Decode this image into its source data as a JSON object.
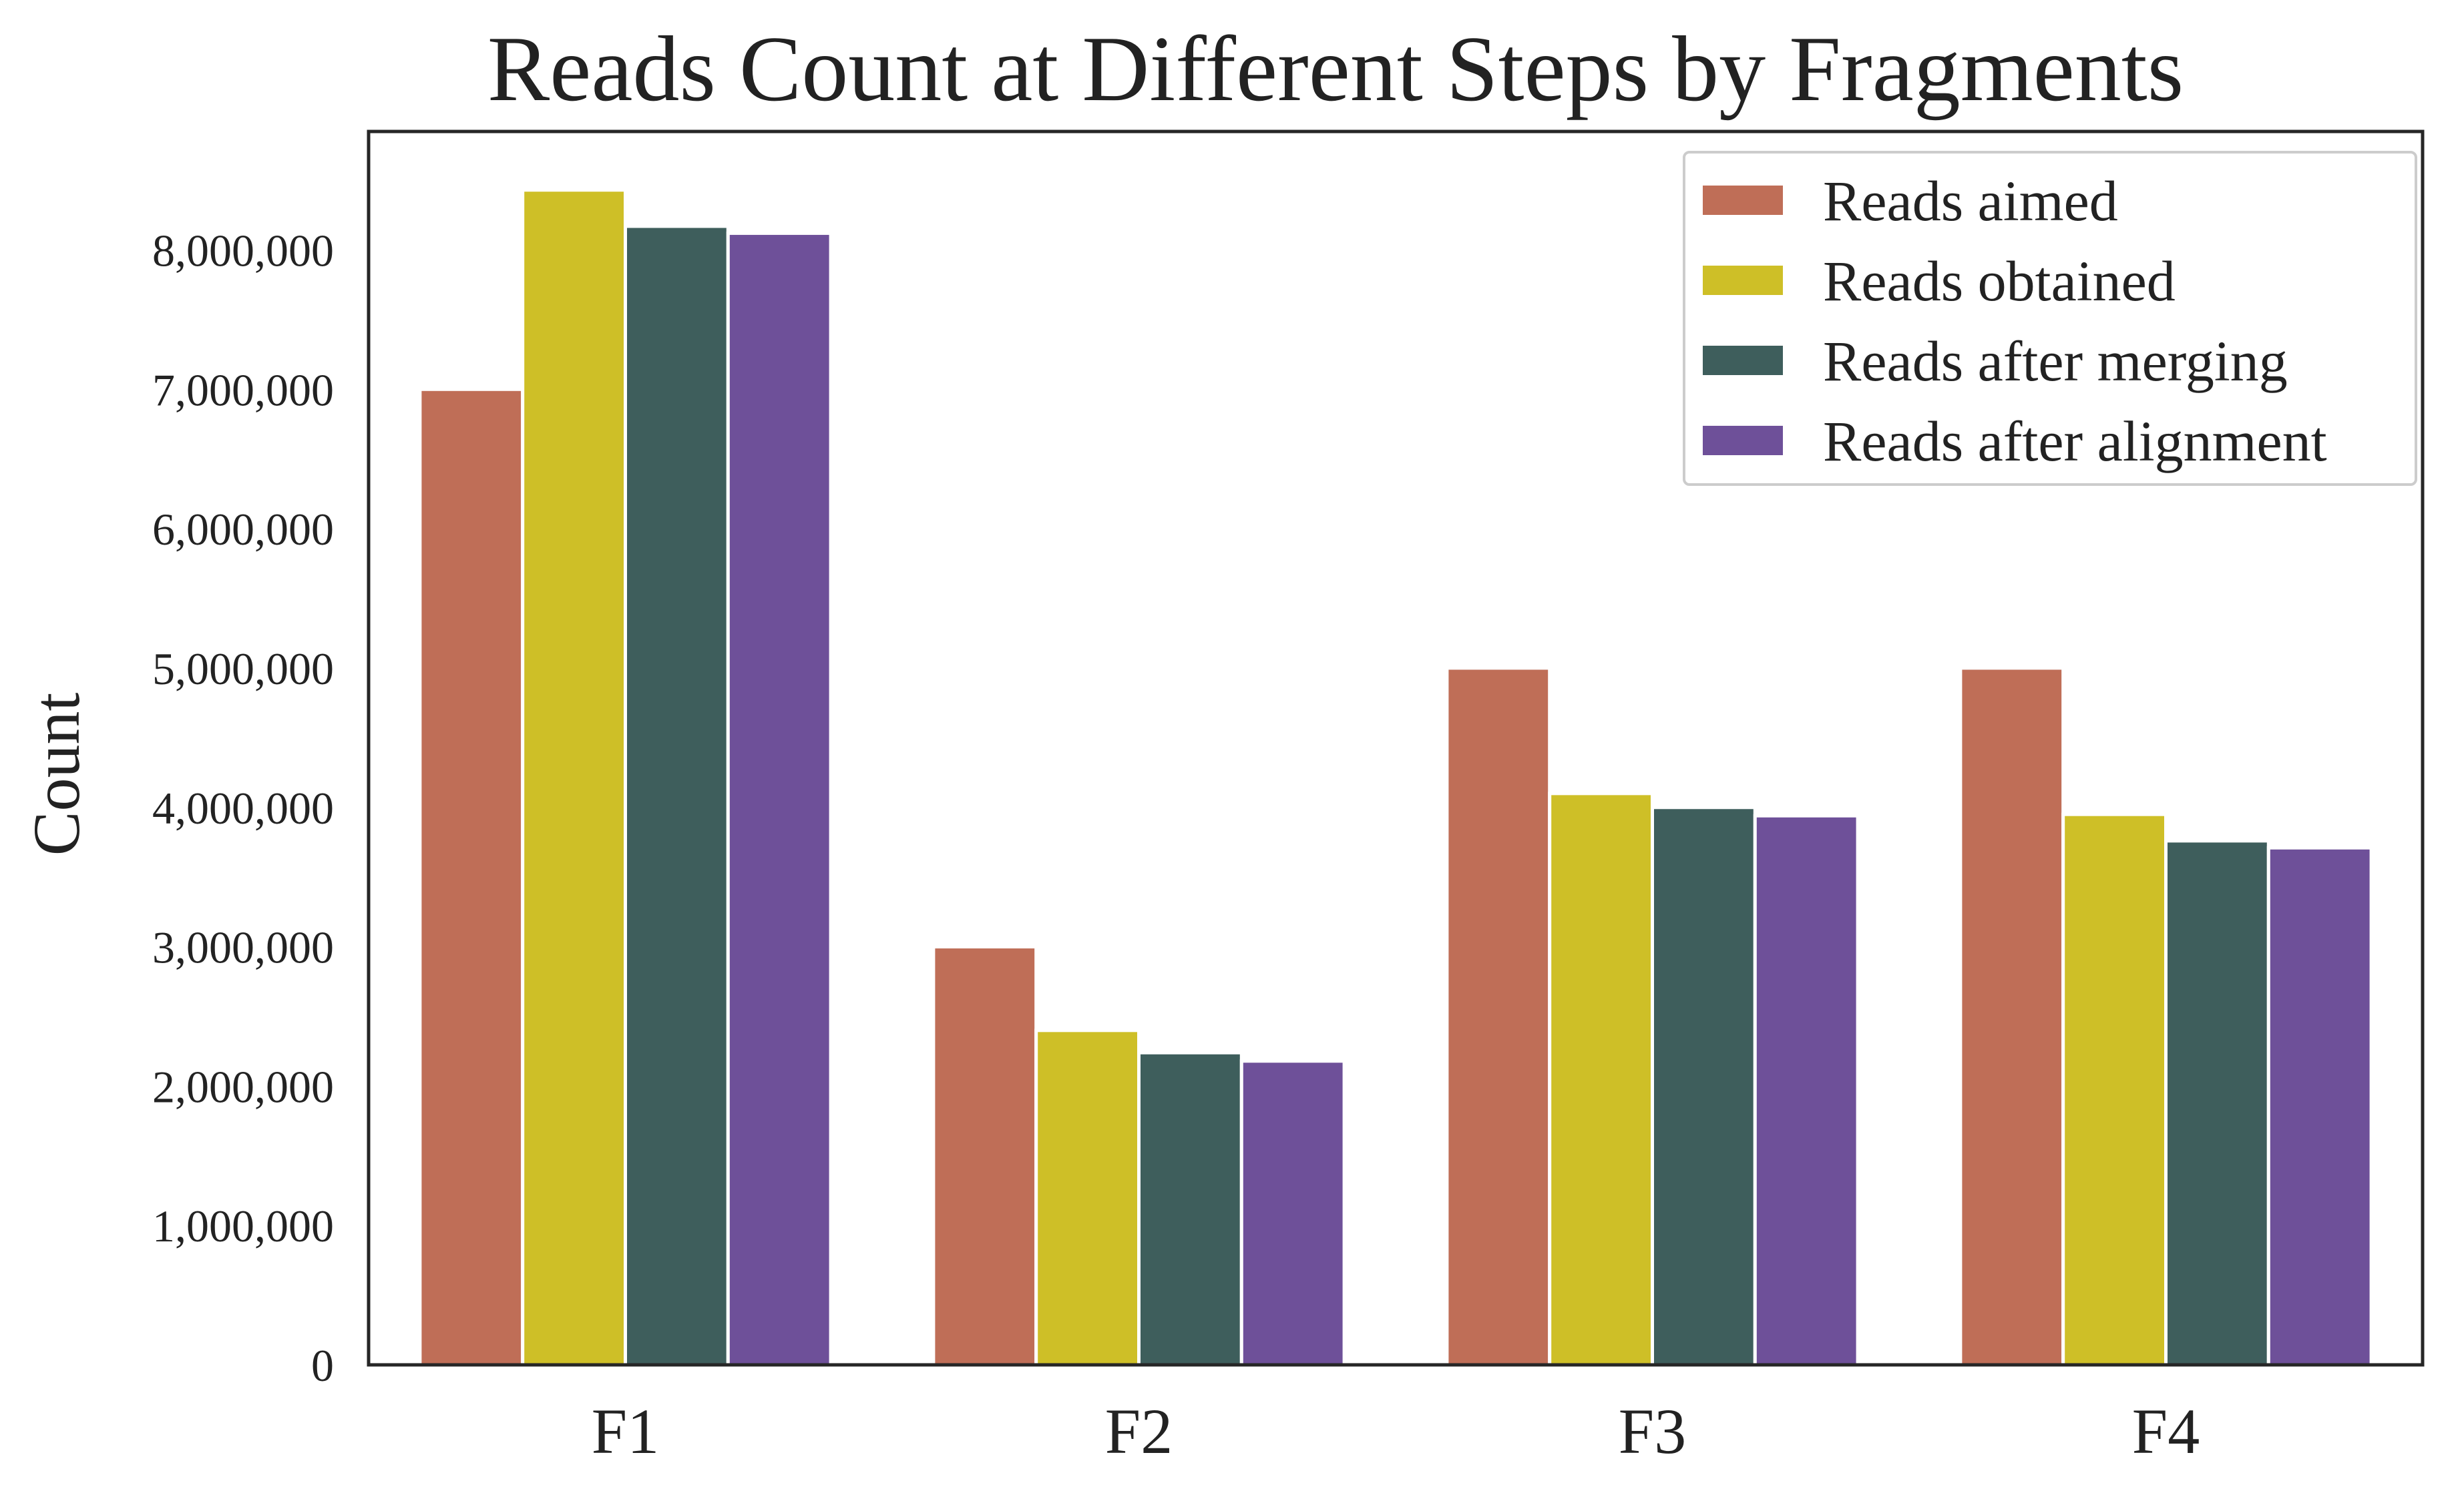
{
  "chart_data": {
    "type": "bar",
    "title": "Reads Count at Different Steps by Fragments",
    "xlabel": "",
    "ylabel": "Count",
    "ylim": [
      0,
      8850000
    ],
    "y_ticks": [
      0,
      1000000,
      2000000,
      3000000,
      4000000,
      5000000,
      6000000,
      7000000,
      8000000
    ],
    "y_tick_labels": [
      "0",
      "1,000,000",
      "2,000,000",
      "3,000,000",
      "4,000,000",
      "5,000,000",
      "6,000,000",
      "7,000,000",
      "8,000,000"
    ],
    "categories": [
      "F1",
      "F2",
      "F3",
      "F4"
    ],
    "series": [
      {
        "name": "Reads aimed",
        "color": "#BF6E57",
        "values": [
          7000000,
          3000000,
          5000000,
          5000000
        ]
      },
      {
        "name": "Reads obtained",
        "color": "#CEBF27",
        "values": [
          8430000,
          2400000,
          4100000,
          3950000
        ]
      },
      {
        "name": "Reads after merging",
        "color": "#3E5E5C",
        "values": [
          8170000,
          2240000,
          4000000,
          3760000
        ]
      },
      {
        "name": "Reads after alignment",
        "color": "#6E5099",
        "values": [
          8120000,
          2180000,
          3940000,
          3710000
        ]
      }
    ],
    "grid": false,
    "legend_position": "top-right"
  }
}
